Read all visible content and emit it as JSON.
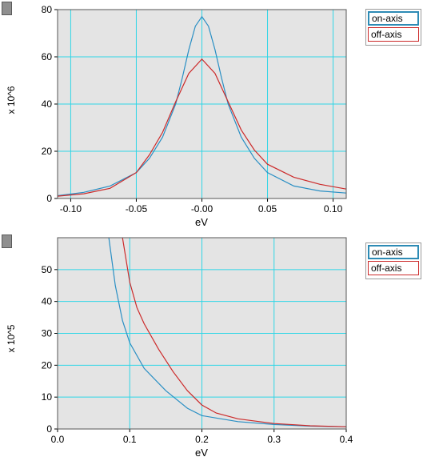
{
  "chart_data": [
    {
      "type": "line",
      "xlabel": "eV",
      "ylabel": "x 10^6",
      "xlim": [
        -0.11,
        0.11
      ],
      "ylim": [
        0,
        80
      ],
      "xticks": [
        -0.1,
        -0.05,
        0.0,
        0.05,
        0.1
      ],
      "xtick_labels": [
        "-0.10",
        "-0.05",
        "-0.00",
        "0.05",
        "0.10"
      ],
      "yticks": [
        0,
        20,
        40,
        60,
        80
      ],
      "ytick_labels": [
        "0",
        "20",
        "40",
        "60",
        "80"
      ],
      "grid": true,
      "legend_position": "right-top",
      "series": [
        {
          "name": "on-axis",
          "color": "#2a8fc4",
          "x": [
            -0.11,
            -0.09,
            -0.07,
            -0.05,
            -0.04,
            -0.03,
            -0.02,
            -0.015,
            -0.01,
            -0.005,
            0.0,
            0.005,
            0.01,
            0.015,
            0.02,
            0.03,
            0.04,
            0.05,
            0.07,
            0.09,
            0.11
          ],
          "y": [
            1.2,
            2.6,
            5.3,
            11,
            17,
            26,
            40,
            51,
            63,
            73,
            77,
            73,
            63,
            51,
            40,
            26,
            17,
            11,
            5.3,
            3.2,
            2.3
          ]
        },
        {
          "name": "off-axis",
          "color": "#cc2a2a",
          "x": [
            -0.11,
            -0.09,
            -0.07,
            -0.05,
            -0.04,
            -0.03,
            -0.02,
            -0.01,
            0.0,
            0.01,
            0.02,
            0.03,
            0.04,
            0.05,
            0.07,
            0.09,
            0.11
          ],
          "y": [
            1.0,
            2.0,
            4.3,
            11,
            18.5,
            28,
            41,
            53,
            59,
            53,
            41,
            29,
            20.5,
            14.5,
            9.0,
            6.0,
            4.0
          ]
        }
      ]
    },
    {
      "type": "line",
      "xlabel": "eV",
      "ylabel": "x 10^5",
      "xlim": [
        0,
        0.4
      ],
      "ylim": [
        0,
        60
      ],
      "xticks": [
        0.0,
        0.1,
        0.2,
        0.3,
        0.4
      ],
      "xtick_labels": [
        "0.0",
        "0.1",
        "0.2",
        "0.3",
        "0.4"
      ],
      "yticks": [
        0,
        10,
        20,
        30,
        40,
        50
      ],
      "ytick_labels": [
        "0",
        "10",
        "20",
        "30",
        "40",
        "50"
      ],
      "grid": true,
      "legend_position": "right-top",
      "series": [
        {
          "name": "on-axis",
          "color": "#2a8fc4",
          "x": [
            0.071,
            0.08,
            0.09,
            0.1,
            0.12,
            0.15,
            0.18,
            0.2,
            0.25,
            0.3,
            0.35,
            0.4
          ],
          "y": [
            60,
            45,
            34,
            27,
            19,
            12,
            6.5,
            4.2,
            2.3,
            1.4,
            0.9,
            0.7
          ]
        },
        {
          "name": "off-axis",
          "color": "#cc2a2a",
          "x": [
            0.09,
            0.1,
            0.11,
            0.12,
            0.14,
            0.16,
            0.18,
            0.2,
            0.22,
            0.25,
            0.3,
            0.33,
            0.35,
            0.4
          ],
          "y": [
            60,
            46,
            38,
            33,
            25,
            18,
            12,
            7.5,
            5.0,
            3.2,
            1.7,
            1.3,
            1.0,
            0.7
          ]
        }
      ]
    }
  ]
}
